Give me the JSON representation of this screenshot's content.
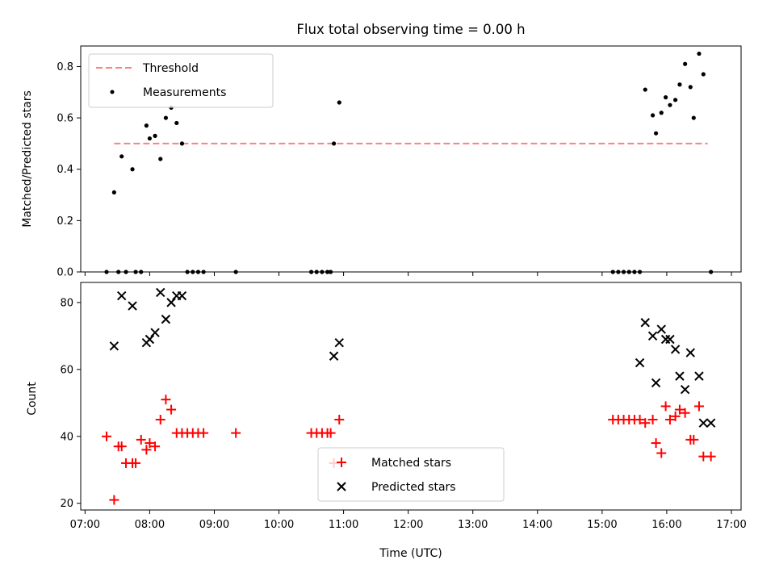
{
  "chart_data": [
    {
      "type": "scatter",
      "title": "Flux total observing time = 0.00 h",
      "xlabel": "",
      "ylabel": "Matched/Predicted stars",
      "xlim": [
        "06:56",
        "17:09"
      ],
      "ylim": [
        0,
        0.88
      ],
      "yticks": [
        "0.0",
        "0.2",
        "0.4",
        "0.6",
        "0.8"
      ],
      "grid": false,
      "legend_position": "top-left",
      "threshold": {
        "name": "Threshold",
        "value": 0.5,
        "x": [
          "07:27",
          "16:38"
        ],
        "color": "#ff7f7f"
      },
      "series": [
        {
          "name": "Measurements",
          "color": "#000000",
          "x": [
            "07:20",
            "07:27",
            "07:31",
            "07:34",
            "07:38",
            "07:44",
            "07:47",
            "07:52",
            "07:57",
            "08:00",
            "08:05",
            "08:10",
            "08:15",
            "08:20",
            "08:25",
            "08:30",
            "08:35",
            "08:40",
            "08:45",
            "08:50",
            "09:20",
            "10:30",
            "10:35",
            "10:40",
            "10:45",
            "10:48",
            "10:51",
            "10:56",
            "15:10",
            "15:15",
            "15:20",
            "15:25",
            "15:30",
            "15:35",
            "15:40",
            "15:47",
            "15:50",
            "15:55",
            "15:59",
            "16:03",
            "16:08",
            "16:12",
            "16:17",
            "16:22",
            "16:25",
            "16:30",
            "16:34",
            "16:41"
          ],
          "y": [
            0,
            0.31,
            0,
            0.45,
            0,
            0.4,
            0,
            0,
            0.57,
            0.52,
            0.53,
            0.44,
            0.6,
            0.64,
            0.58,
            0.5,
            0,
            0,
            0,
            0,
            0,
            0,
            0,
            0,
            0,
            0,
            0.5,
            0.66,
            0,
            0,
            0,
            0,
            0,
            0,
            0.71,
            0.61,
            0.54,
            0.62,
            0.68,
            0.65,
            0.67,
            0.73,
            0.81,
            0.72,
            0.6,
            0.85,
            0.77,
            0
          ]
        }
      ]
    },
    {
      "type": "scatter",
      "title": "",
      "xlabel": "Time (UTC)",
      "ylabel": "Count",
      "xlim": [
        "06:56",
        "17:09"
      ],
      "ylim": [
        18,
        86
      ],
      "xticks": [
        "07:00",
        "08:00",
        "09:00",
        "10:00",
        "11:00",
        "12:00",
        "13:00",
        "14:00",
        "15:00",
        "16:00",
        "17:00"
      ],
      "yticks": [
        "20",
        "40",
        "60",
        "80"
      ],
      "grid": false,
      "legend_position": "bottom-center",
      "series": [
        {
          "name": "Matched stars",
          "marker": "+",
          "color": "#ff0000",
          "x": [
            "07:20",
            "07:27",
            "07:31",
            "07:34",
            "07:38",
            "07:44",
            "07:47",
            "07:52",
            "07:57",
            "08:00",
            "08:05",
            "08:10",
            "08:15",
            "08:20",
            "08:25",
            "08:30",
            "08:35",
            "08:40",
            "08:45",
            "08:50",
            "09:20",
            "10:30",
            "10:35",
            "10:40",
            "10:45",
            "10:48",
            "10:51",
            "10:56",
            "15:10",
            "15:15",
            "15:20",
            "15:25",
            "15:30",
            "15:35",
            "15:40",
            "15:47",
            "15:50",
            "15:55",
            "15:59",
            "16:03",
            "16:08",
            "16:12",
            "16:17",
            "16:22",
            "16:25",
            "16:30",
            "16:34",
            "16:41"
          ],
          "y": [
            40,
            21,
            37,
            37,
            32,
            32,
            32,
            39,
            36,
            38,
            37,
            45,
            51,
            48,
            41,
            41,
            41,
            41,
            41,
            41,
            41,
            41,
            41,
            41,
            41,
            41,
            32,
            45,
            45,
            45,
            45,
            45,
            45,
            45,
            44,
            45,
            38,
            35,
            49,
            45,
            46,
            48,
            47,
            39,
            39,
            49,
            34,
            34
          ]
        },
        {
          "name": "Predicted stars",
          "marker": "x",
          "color": "#000000",
          "x": [
            "07:27",
            "07:34",
            "07:44",
            "07:57",
            "08:00",
            "08:05",
            "08:10",
            "08:15",
            "08:20",
            "08:25",
            "08:30",
            "10:51",
            "10:56",
            "15:35",
            "15:40",
            "15:47",
            "15:50",
            "15:55",
            "15:59",
            "16:03",
            "16:08",
            "16:12",
            "16:17",
            "16:22",
            "16:30",
            "16:34",
            "16:41"
          ],
          "y": [
            67,
            82,
            79,
            68,
            69,
            71,
            83,
            75,
            80,
            82,
            82,
            64,
            68,
            62,
            74,
            70,
            56,
            72,
            69,
            69,
            66,
            58,
            54,
            65,
            58,
            44,
            44
          ]
        }
      ]
    }
  ]
}
